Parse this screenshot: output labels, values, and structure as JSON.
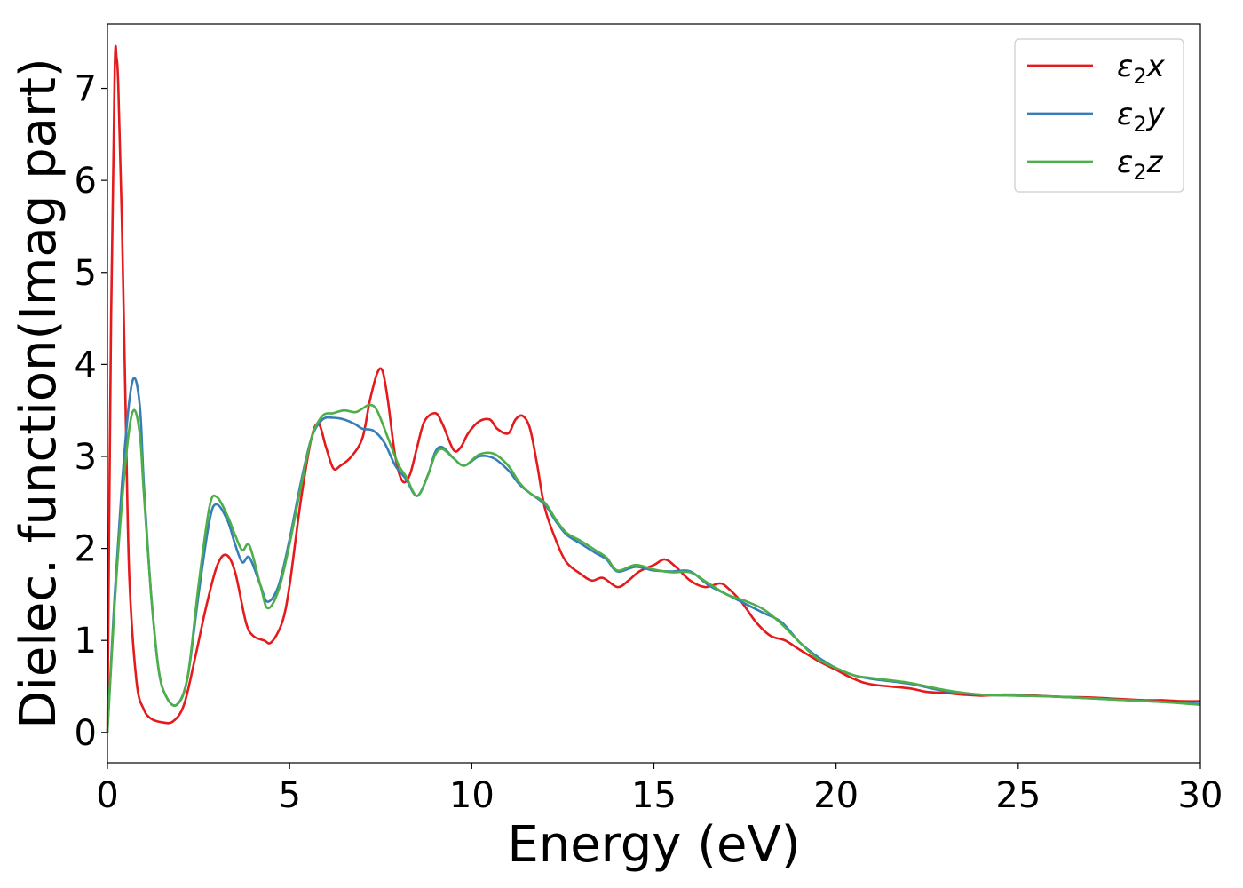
{
  "chart_data": {
    "type": "line",
    "xlabel": "Energy (eV)",
    "ylabel": "Dielec. function(Imag part)",
    "xlim": [
      0,
      30
    ],
    "ylim": [
      -0.33,
      7.7
    ],
    "xticks": [
      0,
      5,
      10,
      15,
      20,
      25,
      30
    ],
    "yticks": [
      0,
      1,
      2,
      3,
      4,
      5,
      6,
      7
    ],
    "xtick_labels": [
      "0",
      "5",
      "10",
      "15",
      "20",
      "25",
      "30"
    ],
    "ytick_labels": [
      "0",
      "1",
      "2",
      "3",
      "4",
      "5",
      "6",
      "7"
    ],
    "grid": false,
    "legend_position": "top-right",
    "series": [
      {
        "name": "ε2x",
        "legend": {
          "base": "ε",
          "sub": "2",
          "suffix": "x"
        },
        "color": "#e41a1c",
        "x": [
          0,
          0.1,
          0.2,
          0.25,
          0.3,
          0.4,
          0.5,
          0.6,
          0.8,
          1.0,
          1.2,
          1.5,
          1.8,
          2.1,
          2.4,
          2.7,
          3.0,
          3.25,
          3.5,
          3.8,
          4.0,
          4.3,
          4.5,
          4.8,
          5.0,
          5.3,
          5.6,
          5.8,
          6.0,
          6.2,
          6.4,
          6.7,
          7.0,
          7.2,
          7.4,
          7.55,
          7.7,
          7.9,
          8.1,
          8.3,
          8.5,
          8.7,
          9.0,
          9.2,
          9.5,
          9.7,
          9.9,
          10.2,
          10.5,
          10.7,
          11.0,
          11.2,
          11.4,
          11.6,
          11.8,
          12.0,
          12.3,
          12.6,
          13.0,
          13.3,
          13.6,
          14.0,
          14.3,
          14.6,
          15.0,
          15.3,
          15.6,
          16.0,
          16.4,
          16.8,
          17.0,
          17.4,
          17.8,
          18.2,
          18.6,
          19.0,
          19.5,
          20.0,
          20.5,
          21.0,
          22.0,
          22.5,
          23.0,
          23.5,
          24.0,
          24.5,
          25.0,
          26.0,
          27.0,
          27.5,
          28.0,
          28.5,
          29.0,
          29.5,
          30.0
        ],
        "values": [
          0,
          4.5,
          7.2,
          7.33,
          7.0,
          5.5,
          3.5,
          1.7,
          0.55,
          0.25,
          0.15,
          0.11,
          0.12,
          0.3,
          0.8,
          1.35,
          1.8,
          1.93,
          1.75,
          1.2,
          1.05,
          1.0,
          0.98,
          1.2,
          1.6,
          2.5,
          3.2,
          3.35,
          3.1,
          2.87,
          2.9,
          3.0,
          3.2,
          3.6,
          3.9,
          3.93,
          3.6,
          3.0,
          2.73,
          2.8,
          3.1,
          3.38,
          3.47,
          3.35,
          3.07,
          3.1,
          3.25,
          3.38,
          3.4,
          3.3,
          3.25,
          3.4,
          3.44,
          3.3,
          2.9,
          2.45,
          2.1,
          1.85,
          1.72,
          1.65,
          1.68,
          1.58,
          1.65,
          1.75,
          1.82,
          1.88,
          1.8,
          1.65,
          1.58,
          1.62,
          1.58,
          1.42,
          1.2,
          1.05,
          1.0,
          0.9,
          0.78,
          0.68,
          0.58,
          0.52,
          0.48,
          0.44,
          0.43,
          0.41,
          0.4,
          0.41,
          0.41,
          0.39,
          0.38,
          0.37,
          0.36,
          0.35,
          0.35,
          0.34,
          0.34
        ]
      },
      {
        "name": "ε2y",
        "legend": {
          "base": "ε",
          "sub": "2",
          "suffix": "y"
        },
        "color": "#377eb8",
        "x": [
          0,
          0.2,
          0.4,
          0.6,
          0.75,
          0.9,
          1.0,
          1.2,
          1.4,
          1.6,
          1.9,
          2.2,
          2.5,
          2.8,
          3.0,
          3.3,
          3.5,
          3.7,
          3.9,
          4.2,
          4.4,
          4.7,
          5.0,
          5.3,
          5.6,
          5.9,
          6.2,
          6.5,
          6.8,
          7.0,
          7.3,
          7.6,
          7.9,
          8.2,
          8.5,
          8.8,
          9.0,
          9.2,
          9.5,
          9.8,
          10.2,
          10.6,
          11.0,
          11.3,
          11.6,
          12.0,
          12.3,
          12.6,
          13.0,
          13.4,
          13.7,
          14.0,
          14.5,
          15.0,
          15.5,
          16.0,
          16.5,
          17.0,
          17.5,
          18.0,
          18.5,
          19.0,
          19.5,
          20.0,
          20.5,
          21.0,
          22.0,
          23.0,
          24.0,
          25.0,
          26.0,
          27.0,
          28.0,
          29.0,
          30.0
        ],
        "values": [
          0,
          1.5,
          2.7,
          3.6,
          3.85,
          3.5,
          2.7,
          1.5,
          0.7,
          0.4,
          0.3,
          0.6,
          1.5,
          2.3,
          2.48,
          2.3,
          2.05,
          1.85,
          1.9,
          1.6,
          1.42,
          1.6,
          2.1,
          2.7,
          3.2,
          3.4,
          3.42,
          3.4,
          3.35,
          3.3,
          3.28,
          3.15,
          2.9,
          2.75,
          2.57,
          2.8,
          3.05,
          3.1,
          2.98,
          2.9,
          3.0,
          2.98,
          2.85,
          2.7,
          2.6,
          2.48,
          2.3,
          2.15,
          2.05,
          1.95,
          1.88,
          1.75,
          1.8,
          1.76,
          1.75,
          1.75,
          1.6,
          1.5,
          1.4,
          1.3,
          1.2,
          0.98,
          0.82,
          0.7,
          0.62,
          0.58,
          0.53,
          0.45,
          0.41,
          0.4,
          0.39,
          0.37,
          0.35,
          0.33,
          0.31
        ]
      },
      {
        "name": "ε2z",
        "legend": {
          "base": "ε",
          "sub": "2",
          "suffix": "z"
        },
        "color": "#4daf4a",
        "x": [
          0,
          0.2,
          0.4,
          0.6,
          0.75,
          0.9,
          1.0,
          1.2,
          1.4,
          1.6,
          1.9,
          2.2,
          2.5,
          2.8,
          3.0,
          3.3,
          3.5,
          3.7,
          3.9,
          4.2,
          4.4,
          4.7,
          5.0,
          5.3,
          5.6,
          5.9,
          6.2,
          6.5,
          6.8,
          7.0,
          7.2,
          7.4,
          7.7,
          8.0,
          8.2,
          8.5,
          8.8,
          9.0,
          9.2,
          9.5,
          9.8,
          10.2,
          10.6,
          11.0,
          11.3,
          11.6,
          12.0,
          12.3,
          12.6,
          13.0,
          13.4,
          13.7,
          14.0,
          14.5,
          15.0,
          15.5,
          16.0,
          16.5,
          17.0,
          17.5,
          18.0,
          18.5,
          19.0,
          19.5,
          20.0,
          20.5,
          21.0,
          22.0,
          23.0,
          24.0,
          25.0,
          26.0,
          27.0,
          28.0,
          29.0,
          30.0
        ],
        "values": [
          0,
          1.4,
          2.5,
          3.3,
          3.5,
          3.2,
          2.6,
          1.5,
          0.7,
          0.4,
          0.3,
          0.6,
          1.6,
          2.45,
          2.56,
          2.35,
          2.15,
          1.98,
          2.03,
          1.6,
          1.35,
          1.55,
          2.05,
          2.65,
          3.2,
          3.44,
          3.47,
          3.5,
          3.48,
          3.52,
          3.56,
          3.5,
          3.2,
          2.9,
          2.78,
          2.57,
          2.8,
          3.02,
          3.08,
          2.98,
          2.9,
          3.02,
          3.03,
          2.9,
          2.72,
          2.6,
          2.5,
          2.32,
          2.17,
          2.08,
          1.98,
          1.9,
          1.76,
          1.82,
          1.77,
          1.74,
          1.74,
          1.62,
          1.5,
          1.43,
          1.34,
          1.18,
          0.98,
          0.8,
          0.7,
          0.62,
          0.59,
          0.54,
          0.46,
          0.41,
          0.4,
          0.39,
          0.37,
          0.35,
          0.33,
          0.3
        ]
      }
    ]
  }
}
